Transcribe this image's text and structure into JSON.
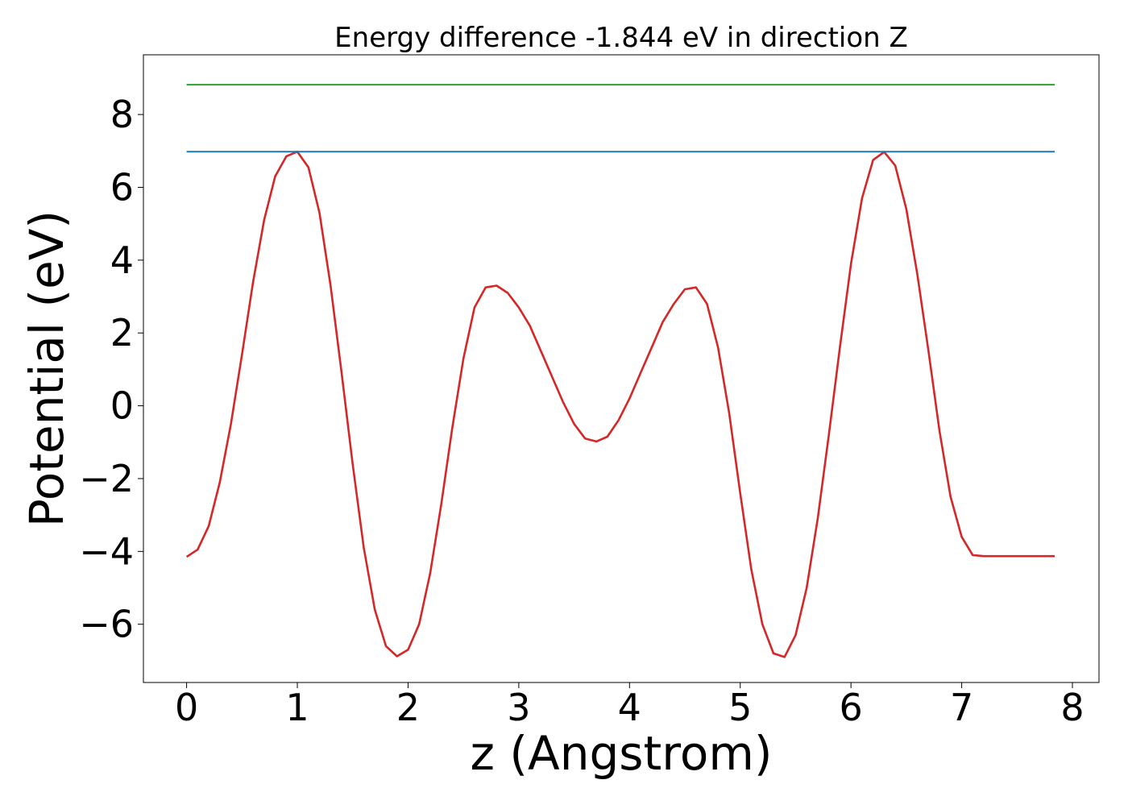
{
  "chart_data": {
    "type": "line",
    "title": "Energy difference -1.844 eV in direction Z",
    "xlabel": "z (Angstrom)",
    "ylabel": "Potential (eV)",
    "xlim": [
      -0.39,
      8.24
    ],
    "ylim": [
      -7.6,
      9.64
    ],
    "x_ticks": [
      0,
      1,
      2,
      3,
      4,
      5,
      6,
      7,
      8
    ],
    "x_tick_labels": [
      "0",
      "1",
      "2",
      "3",
      "4",
      "5",
      "6",
      "7",
      "8"
    ],
    "y_ticks": [
      -6,
      -4,
      -2,
      0,
      2,
      4,
      6,
      8
    ],
    "y_tick_labels": [
      "−6",
      "−4",
      "−2",
      "0",
      "2",
      "4",
      "6",
      "8"
    ],
    "grid": false,
    "series": [
      {
        "color": "#d62728",
        "style": "solid",
        "x": [
          0.0,
          0.1,
          0.2,
          0.3,
          0.4,
          0.5,
          0.6,
          0.7,
          0.8,
          0.9,
          1.0,
          1.1,
          1.2,
          1.3,
          1.4,
          1.5,
          1.6,
          1.7,
          1.8,
          1.9,
          2.0,
          2.1,
          2.2,
          2.3,
          2.4,
          2.5,
          2.6,
          2.7,
          2.8,
          2.9,
          3.0,
          3.1,
          3.2,
          3.3,
          3.4,
          3.5,
          3.6,
          3.7,
          3.8,
          3.9,
          4.0,
          4.1,
          4.2,
          4.3,
          4.4,
          4.5,
          4.6,
          4.7,
          4.8,
          4.9,
          5.0,
          5.1,
          5.2,
          5.3,
          5.4,
          5.5,
          5.6,
          5.7,
          5.8,
          5.9,
          6.0,
          6.1,
          6.2,
          6.3,
          6.4,
          6.5,
          6.6,
          6.7,
          6.8,
          6.9,
          7.0,
          7.1,
          7.2,
          7.3,
          7.4,
          7.5,
          7.6,
          7.7,
          7.8,
          7.84
        ],
        "y": [
          -4.15,
          -3.95,
          -3.3,
          -2.1,
          -0.5,
          1.4,
          3.4,
          5.1,
          6.3,
          6.85,
          6.98,
          6.55,
          5.3,
          3.3,
          0.9,
          -1.6,
          -3.9,
          -5.6,
          -6.6,
          -6.88,
          -6.7,
          -6.0,
          -4.6,
          -2.7,
          -0.6,
          1.3,
          2.7,
          3.25,
          3.3,
          3.1,
          2.7,
          2.2,
          1.5,
          0.8,
          0.1,
          -0.5,
          -0.9,
          -0.98,
          -0.85,
          -0.4,
          0.2,
          0.9,
          1.6,
          2.3,
          2.8,
          3.2,
          3.25,
          2.8,
          1.6,
          -0.2,
          -2.4,
          -4.5,
          -6.0,
          -6.8,
          -6.9,
          -6.3,
          -5.0,
          -3.1,
          -0.8,
          1.6,
          3.9,
          5.7,
          6.75,
          6.97,
          6.6,
          5.4,
          3.6,
          1.5,
          -0.7,
          -2.5,
          -3.6,
          -4.1,
          -4.13,
          -4.13,
          -4.13,
          -4.13,
          -4.13,
          -4.13,
          -4.13,
          -4.13
        ]
      },
      {
        "color": "#1f77b4",
        "style": "solid",
        "x": [
          0.0,
          7.84
        ],
        "y": [
          6.98,
          6.98
        ]
      },
      {
        "color": "#2ca02c",
        "style": "solid",
        "x": [
          0.0,
          7.84
        ],
        "y": [
          8.82,
          8.82
        ]
      }
    ]
  }
}
